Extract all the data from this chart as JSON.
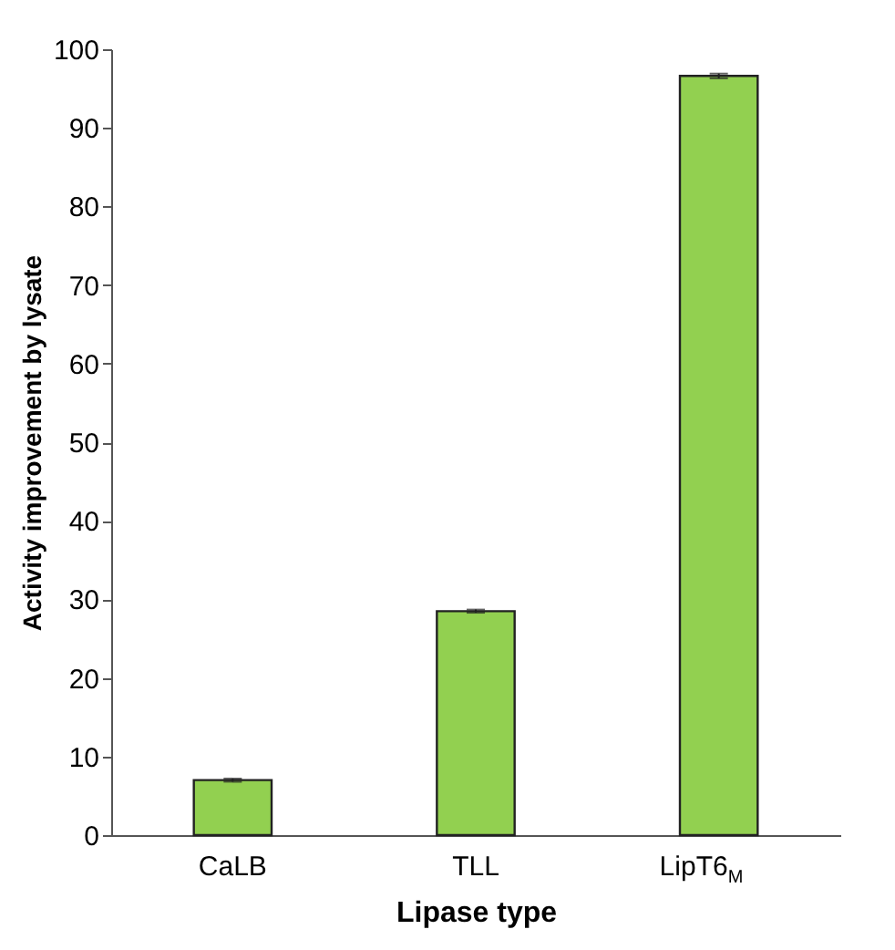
{
  "chart_data": {
    "type": "bar",
    "xlabel": "Lipase type",
    "ylabel": "Activity improvement by lysate",
    "categories": [
      "CaLB",
      "TLL",
      "LipT6$_{M}$"
    ],
    "values": [
      7.0,
      28.5,
      96.6
    ],
    "errors": [
      0.2,
      0.2,
      0.3
    ],
    "color": "#92d050",
    "ylim": [
      0,
      100
    ],
    "yticks": [
      0,
      10,
      20,
      30,
      40,
      50,
      60,
      70,
      80,
      90,
      100
    ],
    "grid": false
  }
}
